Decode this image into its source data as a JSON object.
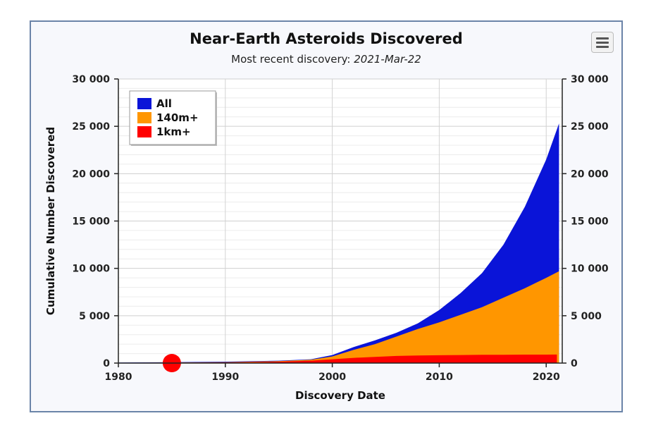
{
  "header": {
    "title": "Near-Earth Asteroids Discovered",
    "subtitle_prefix": "Most recent discovery: ",
    "subtitle_date": "2021-Mar-22"
  },
  "chart_data": {
    "type": "area",
    "title": "Near-Earth Asteroids Discovered",
    "subtitle": "Most recent discovery: 2021-Mar-22",
    "xlabel": "Discovery Date",
    "ylabel": "Cumulative Number Discovered",
    "xlim": [
      1980,
      2021.5
    ],
    "ylim": [
      0,
      30000
    ],
    "x_ticks": [
      1980,
      1990,
      2000,
      2010,
      2020
    ],
    "y_ticks": [
      0,
      5000,
      10000,
      15000,
      20000,
      25000,
      30000
    ],
    "y_tick_labels": [
      "0",
      "5 000",
      "10 000",
      "15 000",
      "20 000",
      "25 000",
      "30 000"
    ],
    "y_axis_mirrored_right": true,
    "grid": true,
    "legend_position": "top-left",
    "series": [
      {
        "name": "All",
        "color": "#0a14d8",
        "points": [
          [
            1980,
            50
          ],
          [
            1985,
            100
          ],
          [
            1990,
            150
          ],
          [
            1995,
            250
          ],
          [
            1998,
            400
          ],
          [
            2000,
            850
          ],
          [
            2002,
            1700
          ],
          [
            2004,
            2400
          ],
          [
            2006,
            3200
          ],
          [
            2008,
            4200
          ],
          [
            2010,
            5600
          ],
          [
            2012,
            7400
          ],
          [
            2014,
            9500
          ],
          [
            2016,
            12500
          ],
          [
            2018,
            16500
          ],
          [
            2020,
            21500
          ],
          [
            2021.2,
            25300
          ]
        ]
      },
      {
        "name": "140m+",
        "color": "#ff9600",
        "points": [
          [
            1980,
            30
          ],
          [
            1985,
            60
          ],
          [
            1990,
            100
          ],
          [
            1995,
            200
          ],
          [
            1998,
            350
          ],
          [
            2000,
            700
          ],
          [
            2002,
            1400
          ],
          [
            2004,
            2000
          ],
          [
            2006,
            2800
          ],
          [
            2008,
            3600
          ],
          [
            2010,
            4300
          ],
          [
            2012,
            5100
          ],
          [
            2014,
            5900
          ],
          [
            2016,
            6900
          ],
          [
            2018,
            7900
          ],
          [
            2020,
            9000
          ],
          [
            2021.2,
            9700
          ]
        ]
      },
      {
        "name": "1km+",
        "color": "#ff0000",
        "points": [
          [
            1980,
            20
          ],
          [
            1985,
            40
          ],
          [
            1990,
            70
          ],
          [
            1995,
            150
          ],
          [
            1998,
            250
          ],
          [
            2000,
            400
          ],
          [
            2002,
            550
          ],
          [
            2004,
            650
          ],
          [
            2006,
            750
          ],
          [
            2008,
            800
          ],
          [
            2010,
            830
          ],
          [
            2012,
            850
          ],
          [
            2014,
            870
          ],
          [
            2016,
            880
          ],
          [
            2018,
            890
          ],
          [
            2020,
            895
          ],
          [
            2021,
            900
          ]
        ]
      }
    ],
    "marker": {
      "x": 1985,
      "y": 0,
      "color": "#ff0000"
    }
  }
}
